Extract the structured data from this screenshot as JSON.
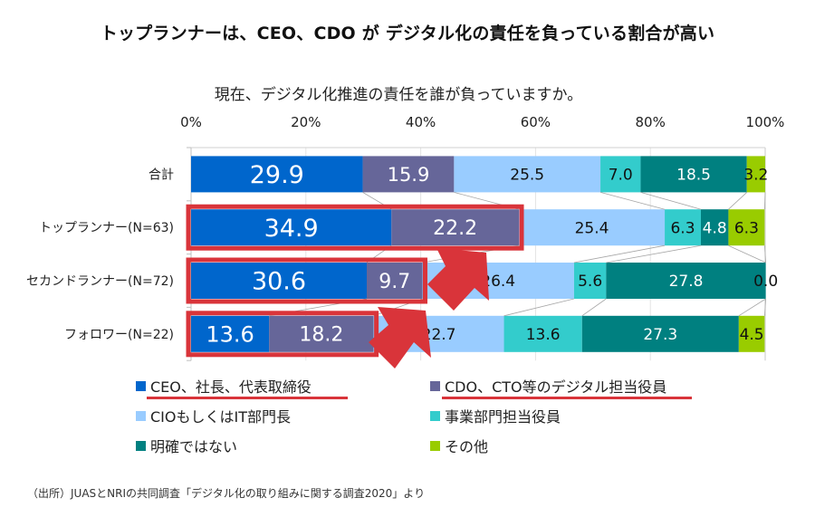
{
  "title": "トップランナーは、CEO、CDO が デジタル化の責任を負っている割合が高い",
  "footer": "（出所）JUASとNRIの共同調査「デジタル化の取り組みに関する調査2020」より",
  "highlight_color": "#d9343a",
  "chart_data": {
    "type": "bar",
    "orientation": "horizontal",
    "stacked": true,
    "percent": true,
    "title": "現在、デジタル化推進の責任を誰が負っていますか。",
    "xlabel": "",
    "ylabel": "",
    "xlim": [
      0,
      100
    ],
    "x_ticks": [
      "0%",
      "20%",
      "40%",
      "60%",
      "80%",
      "100%"
    ],
    "grid": true,
    "legend_position": "bottom",
    "categories": [
      "合計",
      "トップランナー(N=63)",
      "セカンドランナー(N=72)",
      "フォロワー(N=22)"
    ],
    "series": [
      {
        "name": "CEO、社長、代表取締役",
        "color": "#0066CC",
        "label_color": "#ffffff",
        "values": [
          29.9,
          34.9,
          30.6,
          13.6
        ],
        "labels": [
          "29.9",
          "34.9",
          "30.6",
          "13.6"
        ],
        "highlighted": true
      },
      {
        "name": "CDO、CTO等のデジタル担当役員",
        "color": "#666699",
        "label_color": "#ffffff",
        "values": [
          15.9,
          22.2,
          9.7,
          18.2
        ],
        "labels": [
          "15.9",
          "22.2",
          "9.7",
          "18.2"
        ],
        "highlighted": true
      },
      {
        "name": "CIOもしくはIT部門長",
        "color": "#99CCFF",
        "label_color": "#111111",
        "values": [
          25.5,
          25.4,
          26.4,
          22.7
        ],
        "labels": [
          "25.5",
          "25.4",
          "26.4",
          "22.7"
        ],
        "highlighted": false
      },
      {
        "name": "事業部門担当役員",
        "color": "#33CCCC",
        "label_color": "#111111",
        "values": [
          7.0,
          6.3,
          5.6,
          13.6
        ],
        "labels": [
          "7.0",
          "6.3",
          "5.6",
          "13.6"
        ],
        "highlighted": false
      },
      {
        "name": "明確ではない",
        "color": "#008080",
        "label_color": "#ffffff",
        "values": [
          18.5,
          4.8,
          27.8,
          27.3
        ],
        "labels": [
          "18.5",
          "4.8",
          "27.8",
          "27.3"
        ],
        "highlighted": false
      },
      {
        "name": "その他",
        "color": "#99CC00",
        "label_color": "#111111",
        "values": [
          3.2,
          6.3,
          0.0,
          4.5
        ],
        "labels": [
          "3.2",
          "6.3",
          "0.0",
          "4.5"
        ],
        "highlighted": false
      }
    ],
    "annotations": [
      {
        "type": "box",
        "category": "トップランナー(N=63)",
        "series": [
          "CEO、社長、代表取締役",
          "CDO、CTO等のデジタル担当役員"
        ]
      },
      {
        "type": "box",
        "category": "セカンドランナー(N=72)",
        "series": [
          "CEO、社長、代表取締役",
          "CDO、CTO等のデジタル担当役員"
        ]
      },
      {
        "type": "box",
        "category": "フォロワー(N=22)",
        "series": [
          "CEO、社長、代表取締役",
          "CDO、CTO等のデジタル担当役員"
        ]
      },
      {
        "type": "arrow",
        "from": "セカンドランナー(N=72)",
        "to": "トップランナー(N=63)"
      },
      {
        "type": "arrow",
        "from": "フォロワー(N=22)",
        "to": "セカンドランナー(N=72)"
      }
    ]
  }
}
